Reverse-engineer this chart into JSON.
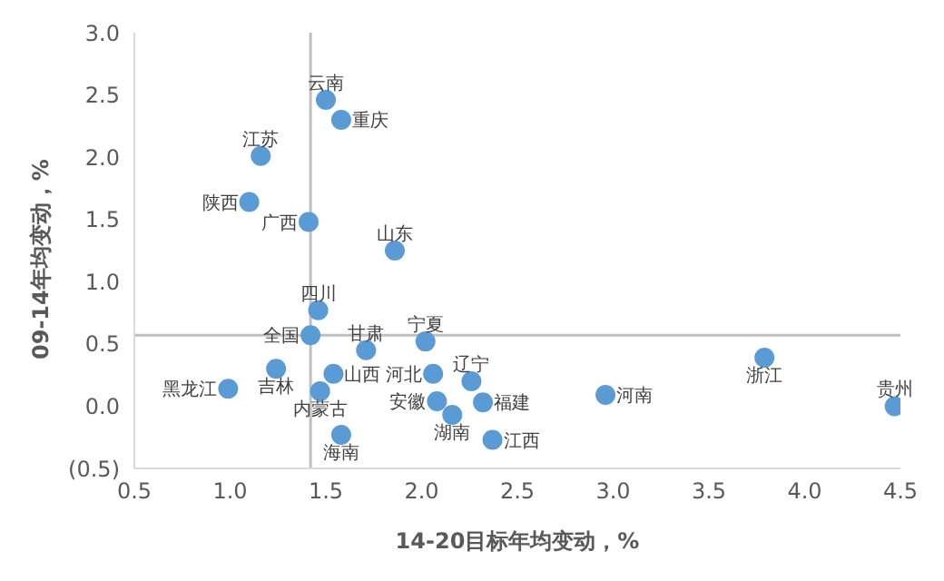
{
  "chart_data": {
    "type": "scatter",
    "xlabel": "14-20目标年均变动，%",
    "ylabel": "09-14年均变动，%",
    "x": [
      1.5,
      1.58,
      1.16,
      1.1,
      1.41,
      1.86,
      1.46,
      1.42,
      2.02,
      1.71,
      1.24,
      1.54,
      2.06,
      2.26,
      0.99,
      1.47,
      2.08,
      2.32,
      2.16,
      2.37,
      1.58,
      2.96,
      3.79,
      4.47
    ],
    "series": [
      {
        "color": "#5b9bd5",
        "values": [
          2.46,
          2.3,
          2.01,
          1.64,
          1.48,
          1.25,
          0.77,
          0.57,
          0.52,
          0.45,
          0.3,
          0.26,
          0.26,
          0.2,
          0.14,
          0.12,
          0.04,
          0.03,
          -0.07,
          -0.27,
          -0.23,
          0.09,
          0.39,
          0.0
        ]
      }
    ],
    "annotations": [
      {
        "text": "云南",
        "x": 1.5,
        "y": 2.46
      },
      {
        "text": "重庆",
        "x": 1.58,
        "y": 2.3
      },
      {
        "text": "江苏",
        "x": 1.16,
        "y": 2.01
      },
      {
        "text": "陕西",
        "x": 1.1,
        "y": 1.64
      },
      {
        "text": "广西",
        "x": 1.41,
        "y": 1.48
      },
      {
        "text": "山东",
        "x": 1.86,
        "y": 1.25
      },
      {
        "text": "四川",
        "x": 1.46,
        "y": 0.77
      },
      {
        "text": "全国",
        "x": 1.42,
        "y": 0.57
      },
      {
        "text": "宁夏",
        "x": 2.02,
        "y": 0.52
      },
      {
        "text": "甘肃",
        "x": 1.71,
        "y": 0.45
      },
      {
        "text": "吉林",
        "x": 1.24,
        "y": 0.3
      },
      {
        "text": "山西",
        "x": 1.54,
        "y": 0.26
      },
      {
        "text": "河北",
        "x": 2.06,
        "y": 0.26
      },
      {
        "text": "辽宁",
        "x": 2.26,
        "y": 0.2
      },
      {
        "text": "黑龙江",
        "x": 0.99,
        "y": 0.14
      },
      {
        "text": "内蒙古",
        "x": 1.47,
        "y": 0.12
      },
      {
        "text": "安徽",
        "x": 2.08,
        "y": 0.04
      },
      {
        "text": "福建",
        "x": 2.32,
        "y": 0.03
      },
      {
        "text": "湖南",
        "x": 2.16,
        "y": -0.07
      },
      {
        "text": "江西",
        "x": 2.37,
        "y": -0.27
      },
      {
        "text": "海南",
        "x": 1.58,
        "y": -0.23
      },
      {
        "text": "河南",
        "x": 2.96,
        "y": 0.09
      },
      {
        "text": "浙江",
        "x": 3.79,
        "y": 0.39
      },
      {
        "text": "贵州",
        "x": 4.47,
        "y": 0.0
      }
    ],
    "ref_lines": [
      {
        "axis": "x",
        "value": 1.42,
        "color": "#bfbfbf"
      },
      {
        "axis": "y",
        "value": 0.57,
        "color": "#bfbfbf"
      }
    ],
    "xlim": [
      0.5,
      4.5
    ],
    "xticks": [
      {
        "value": 0.5,
        "label": "0.5"
      },
      {
        "value": 1,
        "label": "1.0"
      },
      {
        "value": 1.5,
        "label": "1.5"
      },
      {
        "value": 2,
        "label": "2.0"
      },
      {
        "value": 2.5,
        "label": "2.5"
      },
      {
        "value": 3,
        "label": "3.0"
      },
      {
        "value": 3.5,
        "label": "3.5"
      },
      {
        "value": 4,
        "label": "4.0"
      },
      {
        "value": 4.5,
        "label": "4.5"
      }
    ],
    "ylim": [
      -0.5,
      3
    ],
    "yticks": [
      {
        "value": -0.5,
        "label": "(0.5)"
      },
      {
        "value": 0,
        "label": "0.0"
      },
      {
        "value": 0.5,
        "label": "0.5"
      },
      {
        "value": 1,
        "label": "1.0"
      },
      {
        "value": 1.5,
        "label": "1.5"
      },
      {
        "value": 2,
        "label": "2.0"
      },
      {
        "value": 2.5,
        "label": "2.5"
      },
      {
        "value": 3,
        "label": "3.0"
      }
    ],
    "grid": false,
    "marker": "circle"
  }
}
